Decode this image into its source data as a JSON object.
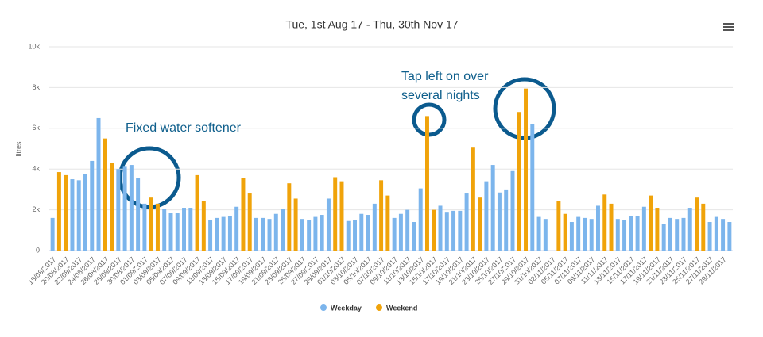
{
  "chart_data": {
    "type": "bar",
    "title": "Tue, 1st Aug 17 - Thu, 30th Nov 17",
    "y_label": "litres",
    "categories": [
      "18/08/2017",
      null,
      "20/08/2017",
      null,
      "22/08/2017",
      null,
      "24/08/2017",
      null,
      "26/08/2017",
      null,
      "28/08/2017",
      null,
      "30/08/2017",
      null,
      "01/09/2017",
      null,
      "03/09/2017",
      null,
      "05/09/2017",
      null,
      "07/09/2017",
      null,
      "09/09/2017",
      null,
      "11/09/2017",
      null,
      "13/09/2017",
      null,
      "15/09/2017",
      null,
      "17/09/2017",
      null,
      "19/09/2017",
      null,
      "21/09/2017",
      null,
      "23/09/2017",
      null,
      "25/09/2017",
      null,
      "27/09/2017",
      null,
      "29/09/2017",
      null,
      "01/10/2017",
      null,
      "03/10/2017",
      null,
      "05/10/2017",
      null,
      "07/10/2017",
      null,
      "09/10/2017",
      null,
      "11/10/2017",
      null,
      "13/10/2017",
      null,
      "15/10/2017",
      null,
      "17/10/2017",
      null,
      "19/10/2017",
      null,
      "21/10/2017",
      null,
      "23/10/2017",
      null,
      "25/10/2017",
      null,
      "27/10/2017",
      null,
      "29/10/2017",
      null,
      "31/10/2017",
      null,
      "02/11/2017",
      null,
      "05/11/2017",
      null,
      "07/11/2017",
      null,
      "09/11/2017",
      null,
      "11/11/2017",
      null,
      "13/11/2017",
      null,
      "15/11/2017",
      null,
      "17/11/2017",
      null,
      "19/11/2017",
      null,
      "21/11/2017",
      null,
      "23/11/2017",
      null,
      "25/11/2017",
      null,
      "27/11/2017",
      null,
      "29/11/2017",
      null
    ],
    "series": [
      {
        "name": "Weekday",
        "color": "#7cb5ec",
        "values": [
          1600,
          null,
          null,
          3500,
          3450,
          3750,
          4400,
          6500,
          null,
          null,
          4000,
          4150,
          4200,
          3550,
          2300,
          null,
          null,
          2050,
          1850,
          1850,
          2100,
          2100,
          null,
          null,
          1500,
          1600,
          1650,
          1700,
          2150,
          null,
          null,
          1600,
          1600,
          1550,
          1800,
          2050,
          null,
          null,
          1550,
          1500,
          1650,
          1750,
          2550,
          null,
          null,
          1450,
          1500,
          1800,
          1750,
          2300,
          null,
          null,
          1600,
          1800,
          2000,
          1400,
          3050,
          null,
          null,
          2200,
          1900,
          1950,
          1950,
          2800,
          null,
          null,
          3400,
          4200,
          2850,
          3000,
          3900,
          null,
          null,
          6200,
          1650,
          1550,
          null,
          null,
          null,
          1400,
          1650,
          1600,
          1550,
          2200,
          null,
          null,
          1550,
          1500,
          1700,
          1700,
          2150,
          null,
          null,
          1300,
          1600,
          1550,
          1600,
          2100,
          null,
          null,
          1400,
          1650,
          1550,
          1400
        ]
      },
      {
        "name": "Weekend",
        "color": "#f0a30a",
        "values": [
          null,
          3850,
          3700,
          null,
          null,
          null,
          null,
          null,
          5500,
          4300,
          null,
          null,
          null,
          null,
          null,
          2600,
          2300,
          null,
          null,
          null,
          null,
          null,
          3700,
          2450,
          null,
          null,
          null,
          null,
          null,
          3550,
          2800,
          null,
          null,
          null,
          null,
          null,
          3300,
          2550,
          null,
          null,
          null,
          null,
          null,
          3600,
          3400,
          null,
          null,
          null,
          null,
          null,
          3450,
          2700,
          null,
          null,
          null,
          null,
          null,
          6600,
          2000,
          null,
          null,
          null,
          null,
          null,
          5050,
          2600,
          null,
          null,
          null,
          null,
          null,
          6800,
          7950,
          null,
          null,
          null,
          null,
          2450,
          1800,
          null,
          null,
          null,
          null,
          null,
          2750,
          2300,
          null,
          null,
          null,
          null,
          null,
          2700,
          2100,
          null,
          null,
          null,
          null,
          null,
          2600,
          2300,
          null,
          null,
          null,
          null
        ]
      }
    ],
    "ylim": [
      0,
      10000
    ],
    "yticks": [
      0,
      {
        "value": 2000,
        "label": "2k"
      },
      {
        "value": 4000,
        "label": "4k"
      },
      {
        "value": 6000,
        "label": "6k"
      },
      {
        "value": 8000,
        "label": "8k"
      },
      {
        "value": 10000,
        "label": "10k"
      }
    ],
    "grid": true,
    "legend": "bottom",
    "annotations": [
      "Fixed water softener",
      "Tap left on over",
      "several nights"
    ]
  }
}
